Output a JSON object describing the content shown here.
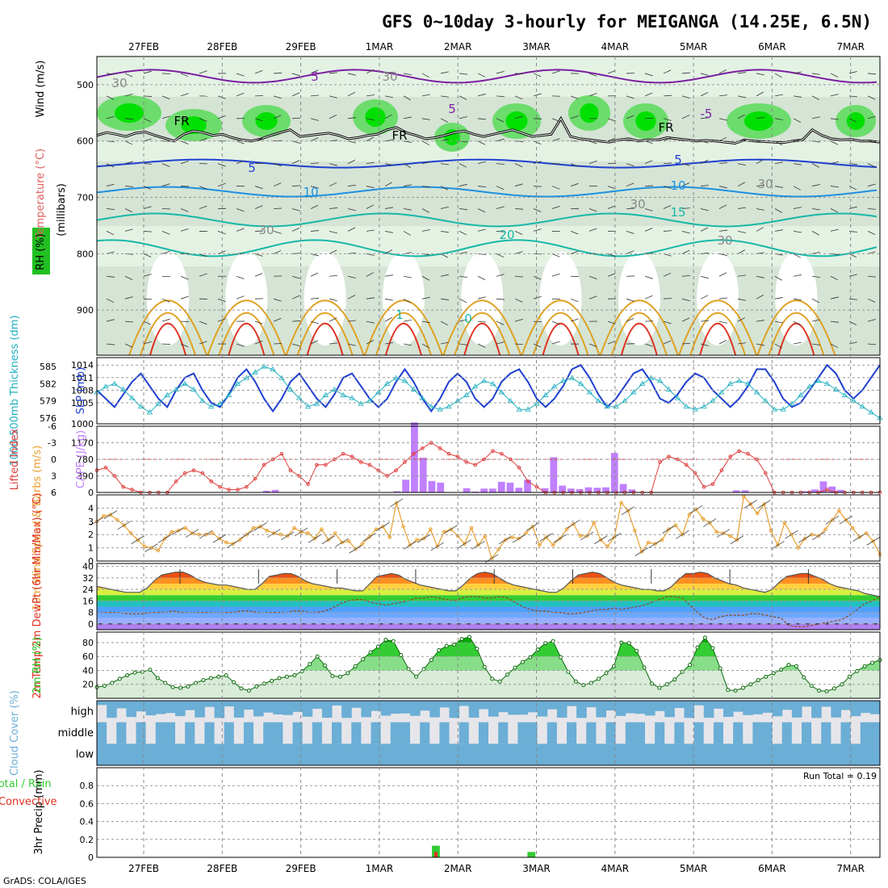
{
  "title": "GFS 0~10day 3-hourly for MEIGANGA (14.25E, 6.5N)",
  "dates": [
    "27FEB",
    "28FEB",
    "29FEB",
    "1MAR",
    "2MAR",
    "3MAR",
    "4MAR",
    "5MAR",
    "6MAR",
    "7MAR"
  ],
  "footer": "GrADS: COLA/IGES",
  "colors": {
    "purple": "#7b1fa2",
    "black": "#000000",
    "blue": "#1f3fd0",
    "lightblue": "#1e90e0",
    "cyan": "#17b8a8",
    "orange": "#e0a020",
    "red": "#e03020",
    "rhGreen": "#22c022",
    "slp": "#1f3fd0",
    "thick": "#20b0c0",
    "lifted": "#e03c3c",
    "cape": "#c080ff",
    "wind": "#e8a030",
    "cloud": "#6baed6",
    "precipTotal": "#33cc33",
    "precipConv": "#e03020"
  },
  "chart_data": [
    {
      "type": "contour",
      "name": "upper-air cross-section",
      "ylabels": [
        "Temperature (°C)",
        "Wind (m/s)",
        "RH (%)",
        "(millibars)"
      ],
      "ylim": [
        980,
        450
      ],
      "yticks": [
        500,
        600,
        700,
        800,
        900
      ],
      "contour_labels": [
        "5",
        "5",
        "-5",
        "FR",
        "FR",
        "FR",
        "5",
        "5",
        "10",
        "10",
        "15",
        "20",
        "0",
        "1",
        "30",
        "30",
        "30",
        "30",
        "30",
        "30"
      ],
      "freezing_level_mb": [
        590,
        585,
        588,
        592,
        586,
        584,
        590,
        595,
        600,
        588,
        582,
        585,
        590,
        588,
        594,
        598,
        600,
        596,
        590,
        585,
        580,
        592,
        590,
        588,
        586,
        590,
        596,
        594,
        590,
        588,
        580,
        576,
        585,
        590,
        596,
        594,
        590,
        585,
        582,
        588,
        592,
        588,
        584,
        580,
        586,
        592,
        590,
        588,
        560,
        592,
        596,
        598,
        600,
        602,
        598,
        596,
        600,
        598,
        598,
        594,
        596,
        598,
        600,
        599,
        600,
        602,
        604,
        598,
        600,
        601,
        602,
        603,
        600,
        598,
        580,
        590,
        596,
        598,
        597,
        600,
        600,
        602
      ]
    },
    {
      "type": "line",
      "name": "thickness and slp",
      "ylabel_left": "1000-500mb Thickness (dm)",
      "ylabel_right": "SLP (mb)",
      "yticks_left": [
        576,
        579,
        582,
        585
      ],
      "yticks_right": [
        1000,
        1005,
        1008,
        1011,
        1014
      ],
      "slp": [
        1008,
        1006,
        1004,
        1007,
        1010,
        1012,
        1009,
        1006,
        1004,
        1008,
        1011,
        1012,
        1008,
        1005,
        1004,
        1007,
        1011,
        1013,
        1010,
        1006,
        1003,
        1006,
        1010,
        1012,
        1009,
        1006,
        1004,
        1007,
        1011,
        1012,
        1009,
        1006,
        1004,
        1006,
        1010,
        1013,
        1010,
        1006,
        1003,
        1006,
        1010,
        1012,
        1010,
        1006,
        1004,
        1006,
        1010,
        1012,
        1013,
        1010,
        1006,
        1004,
        1006,
        1009,
        1013,
        1014,
        1011,
        1007,
        1004,
        1006,
        1009,
        1012,
        1013,
        1010,
        1006,
        1005,
        1007,
        1010,
        1012,
        1011,
        1008,
        1006,
        1004,
        1006,
        1009,
        1013,
        1013,
        1010,
        1006,
        1004,
        1005,
        1008,
        1011,
        1014,
        1012,
        1008,
        1006,
        1008,
        1011,
        1014
      ],
      "thickness": [
        580.5,
        581.5,
        582,
        581,
        579.5,
        578,
        577,
        578.5,
        580,
        581,
        582,
        581,
        579,
        578,
        578.5,
        580,
        582,
        583,
        584,
        585,
        584.5,
        583,
        581,
        579.5,
        578,
        578.5,
        580,
        581,
        580,
        579.5,
        578.5,
        579,
        580.5,
        582,
        583,
        582.5,
        581,
        579.5,
        578,
        577.5,
        578,
        579,
        580,
        581.5,
        582.5,
        582,
        580.5,
        579,
        577.5,
        577.5,
        578.5,
        580,
        581.5,
        582.5,
        583,
        582,
        580.5,
        579,
        578,
        578,
        579,
        580.5,
        582,
        583,
        582.5,
        581,
        579.5,
        578,
        577.5,
        578,
        579,
        580.5,
        582,
        582.5,
        582,
        580.5,
        579,
        577.5,
        577.5,
        578.5,
        580,
        581.5,
        582.5,
        582,
        581,
        580,
        579,
        578,
        577,
        576
      ]
    },
    {
      "type": "bar+line",
      "name": "cape and lifted index",
      "ylabel_left": "Lifted Index",
      "ylabel_right": "CAPE (J/kg)",
      "yticks_left": [
        -6,
        -3,
        0,
        3,
        6
      ],
      "yticks_right": [
        0,
        390,
        780,
        1170
      ],
      "lifted_index": [
        2,
        1.5,
        3,
        5,
        5.5,
        6,
        6,
        6,
        6,
        4,
        2.5,
        2,
        2.5,
        4,
        5,
        5.5,
        5.5,
        5,
        3.5,
        1,
        0,
        -1,
        2,
        3,
        4.5,
        1,
        1,
        0,
        -1,
        -0.5,
        0.5,
        1,
        2,
        3,
        2,
        0.5,
        -1,
        -2,
        -3,
        -2,
        -1,
        -0.5,
        0.5,
        1,
        0,
        -1.5,
        -1,
        0,
        1.5,
        4,
        5,
        6,
        6,
        6,
        6,
        6,
        6,
        6,
        6,
        6,
        6,
        6,
        6,
        6,
        0.5,
        -0.5,
        0,
        1,
        2.5,
        5,
        4.5,
        2,
        -0.5,
        -1.5,
        -1,
        0,
        2.5,
        6,
        6,
        6,
        6,
        6,
        6,
        5.5,
        6,
        6,
        6,
        6,
        6,
        6
      ],
      "cape": [
        0,
        0,
        0,
        0,
        0,
        0,
        0,
        0,
        0,
        0,
        0,
        0,
        0,
        0,
        0,
        0,
        0,
        0,
        0,
        40,
        60,
        0,
        0,
        0,
        0,
        0,
        0,
        0,
        0,
        0,
        0,
        0,
        0,
        0,
        30,
        300,
        1650,
        820,
        270,
        230,
        0,
        0,
        100,
        20,
        90,
        90,
        250,
        230,
        110,
        300,
        0,
        100,
        830,
        160,
        90,
        80,
        120,
        110,
        120,
        930,
        200,
        70,
        0,
        0,
        0,
        0,
        0,
        0,
        0,
        0,
        0,
        0,
        0,
        50,
        50,
        0,
        10,
        0,
        0,
        0,
        0,
        30,
        70,
        260,
        140,
        60,
        0,
        0,
        0,
        0
      ]
    },
    {
      "type": "line",
      "name": "10m wind",
      "ylabel": "10m Wind Speed & Barbs (m/s)",
      "yticks": [
        0,
        1,
        2,
        3,
        4
      ],
      "values": [
        3,
        3.4,
        3.5,
        3.1,
        2.7,
        2.1,
        1.6,
        1.1,
        1,
        0.8,
        1.7,
        2.2,
        2.3,
        2.5,
        2.1,
        2,
        2,
        2.1,
        1.7,
        1.4,
        1.3,
        1.6,
        2,
        2.5,
        2.6,
        2.3,
        2.1,
        2,
        1.9,
        2.5,
        2.2,
        2.1,
        1.7,
        2.4,
        1.6,
        2.1,
        1.4,
        1.5,
        0.9,
        1.3,
        1.8,
        2.4,
        2.6,
        1.8,
        4.4,
        2.6,
        1.2,
        1.6,
        1.7,
        2.4,
        1.1,
        2.2,
        2.4,
        1.9,
        1.3,
        2.5,
        1.2,
        1.9,
        0.2,
        0.9,
        1.6,
        1.8,
        1.7,
        2.1,
        2.6,
        1.2,
        1.8,
        1.2,
        1.7,
        2.4,
        2.8,
        1.9,
        1.9,
        2.9,
        1.6,
        1.1,
        1.8,
        4.4,
        3.8,
        2.3,
        0.7,
        1.4,
        1.3,
        1.6,
        2.4,
        2.7,
        2,
        3.5,
        3.9,
        3.2,
        2.9,
        2.2,
        2.1,
        1.9,
        1.6,
        4.9,
        4.3,
        3.6,
        4.3,
        2.3,
        1.2,
        2.9,
        2,
        1,
        1.7,
        2,
        1.9,
        2.4,
        3.1,
        3.8,
        3.1,
        2.5,
        1.8,
        2.1,
        1.5,
        0.5
      ],
      "min_value": 0.2,
      "max_value": 4.9
    },
    {
      "type": "area",
      "name": "2m temperature and dewpoint",
      "ylabel": "2m Temp 2m DewPt (6hr Min/Max) (°C)",
      "yticks": [
        0,
        8,
        16,
        24,
        32,
        40
      ],
      "temp": [
        26,
        25,
        24,
        23,
        22,
        22,
        22,
        25,
        30,
        34,
        35,
        36,
        36,
        34,
        31,
        29,
        28,
        27,
        27,
        26,
        25,
        24,
        24,
        28,
        33,
        34,
        35,
        35,
        33,
        30,
        28,
        27,
        26,
        25,
        25,
        24,
        23,
        23,
        28,
        33,
        34,
        35,
        34,
        31,
        29,
        27,
        26,
        25,
        24,
        23,
        23,
        27,
        32,
        35,
        36,
        35,
        32,
        29,
        27,
        26,
        25,
        24,
        23,
        22,
        22,
        25,
        30,
        34,
        35,
        36,
        35,
        32,
        29,
        27,
        26,
        25,
        24,
        24,
        23,
        23,
        26,
        31,
        35,
        35,
        36,
        35,
        32,
        30,
        28,
        27,
        25,
        24,
        23,
        22,
        24,
        29,
        33,
        34,
        35,
        35,
        33,
        31,
        28,
        26,
        25,
        24,
        23,
        21,
        20,
        19
      ],
      "dewpoint": [
        8,
        8,
        8,
        8,
        7,
        7,
        7,
        8,
        8,
        8,
        9,
        8,
        8,
        8,
        8,
        8,
        8,
        8,
        8,
        9,
        9,
        8,
        8,
        8,
        8,
        8,
        9,
        9,
        8,
        8,
        9,
        11,
        14,
        16,
        17,
        17,
        15,
        14,
        13,
        14,
        15,
        16,
        18,
        18,
        19,
        18,
        17,
        16,
        18,
        19,
        19,
        18,
        18,
        19,
        18,
        15,
        12,
        10,
        9,
        9,
        8,
        8,
        7,
        7,
        8,
        9,
        10,
        10,
        11,
        10,
        11,
        12,
        13,
        15,
        17,
        19,
        19,
        18,
        13,
        8,
        4,
        3,
        5,
        6,
        6,
        6,
        7,
        7,
        6,
        5,
        4,
        -1,
        -2,
        -2,
        -1,
        0,
        1,
        2,
        3,
        6,
        10,
        14,
        16,
        19
      ]
    },
    {
      "type": "area",
      "name": "2m relative humidity",
      "ylabel": "2m RH (%)",
      "yticks": [
        20,
        40,
        60,
        80
      ],
      "values": [
        16,
        18,
        22,
        28,
        33,
        37,
        38,
        41,
        29,
        22,
        16,
        15,
        17,
        22,
        26,
        29,
        31,
        33,
        23,
        14,
        11,
        17,
        21,
        25,
        29,
        31,
        33,
        39,
        49,
        60,
        47,
        32,
        31,
        36,
        46,
        56,
        66,
        74,
        84,
        82,
        62,
        42,
        31,
        42,
        55,
        69,
        75,
        77,
        85,
        88,
        71,
        45,
        28,
        24,
        34,
        44,
        52,
        59,
        70,
        79,
        82,
        59,
        38,
        24,
        19,
        22,
        28,
        36,
        46,
        80,
        79,
        68,
        44,
        21,
        15,
        20,
        27,
        38,
        48,
        73,
        87,
        72,
        43,
        12,
        11,
        15,
        20,
        26,
        31,
        36,
        41,
        48,
        46,
        30,
        18,
        11,
        10,
        14,
        20,
        31,
        39,
        46,
        51,
        55
      ]
    },
    {
      "type": "heatmap",
      "name": "cloud cover",
      "ylabel": "Cloud Cover (%)",
      "layers": [
        "high",
        "middle",
        "low"
      ]
    },
    {
      "type": "bar",
      "name": "3hr precipitation",
      "ylabel": "3hr Precip (mm)",
      "legend": [
        "Total / Rain",
        "Convective"
      ],
      "yticks": [
        0,
        0.2,
        0.4,
        0.6,
        0.8
      ],
      "ylim": [
        0,
        1
      ],
      "run_total_label": "Run Total = 0.19",
      "total": [
        0,
        0,
        0,
        0,
        0,
        0,
        0,
        0,
        0,
        0,
        0,
        0,
        0,
        0,
        0,
        0,
        0,
        0,
        0,
        0,
        0,
        0,
        0,
        0,
        0,
        0,
        0,
        0,
        0,
        0,
        0,
        0,
        0,
        0,
        0,
        0.13,
        0,
        0,
        0,
        0,
        0,
        0,
        0,
        0,
        0,
        0.06,
        0,
        0,
        0,
        0,
        0,
        0,
        0,
        0,
        0,
        0,
        0,
        0,
        0,
        0,
        0,
        0,
        0,
        0,
        0,
        0,
        0,
        0,
        0,
        0,
        0,
        0,
        0,
        0,
        0,
        0,
        0,
        0,
        0,
        0,
        0,
        0
      ],
      "convective": [
        0,
        0,
        0,
        0,
        0,
        0,
        0,
        0,
        0,
        0,
        0,
        0,
        0,
        0,
        0,
        0,
        0,
        0,
        0,
        0,
        0,
        0,
        0,
        0,
        0,
        0,
        0,
        0,
        0,
        0,
        0,
        0,
        0,
        0,
        0,
        0.06,
        0,
        0,
        0,
        0,
        0,
        0,
        0,
        0,
        0,
        0,
        0,
        0,
        0,
        0,
        0,
        0,
        0,
        0,
        0,
        0,
        0,
        0,
        0,
        0,
        0,
        0,
        0,
        0,
        0,
        0,
        0,
        0,
        0,
        0,
        0,
        0,
        0,
        0,
        0,
        0,
        0,
        0,
        0,
        0,
        0
      ]
    }
  ]
}
